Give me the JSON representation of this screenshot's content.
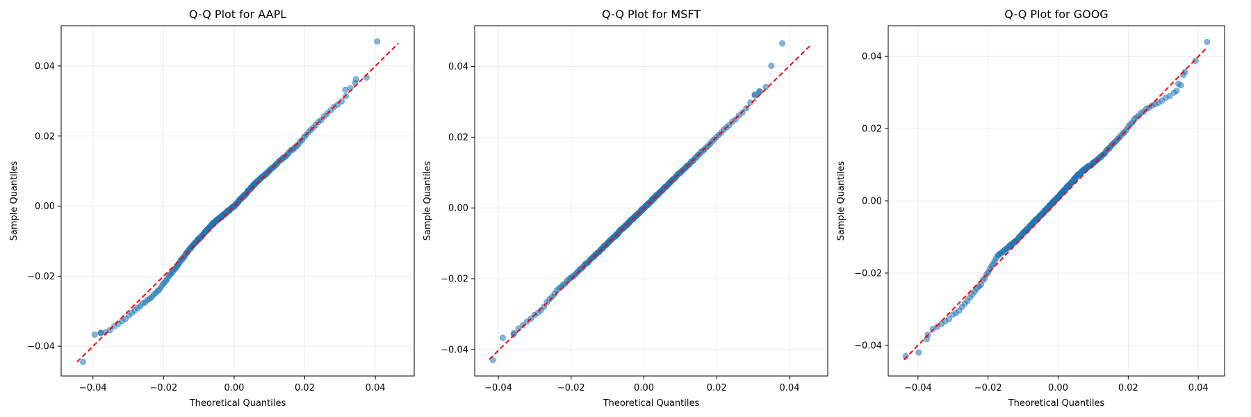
{
  "figure": {
    "background": "#ffffff"
  },
  "style": {
    "point_color": "#1f77b4",
    "line_color": "#ff0000",
    "grid_color": "#b0b0b0"
  },
  "chart_data": [
    {
      "type": "scatter",
      "title": "Q-Q Plot for AAPL",
      "xlabel": "Theoretical Quantiles",
      "ylabel": "Sample Quantiles",
      "xlim": [
        -0.049,
        0.051
      ],
      "ylim": [
        -0.0485,
        0.0515
      ],
      "xticks": [
        -0.04,
        -0.02,
        0.0,
        0.02,
        0.04
      ],
      "yticks": [
        -0.04,
        -0.02,
        0.0,
        0.02,
        0.04
      ],
      "xtick_labels": [
        "−0.04",
        "−0.02",
        "0.00",
        "0.02",
        "0.04"
      ],
      "ytick_labels": [
        "−0.04",
        "−0.02",
        "0.00",
        "0.02",
        "0.04"
      ],
      "grid": true,
      "reference_line": {
        "x": [
          -0.0445,
          0.0465
        ],
        "y": [
          -0.0445,
          0.0465
        ],
        "style": "dashed"
      },
      "knots": [
        [
          -0.0445,
          -0.0445
        ],
        [
          -0.0395,
          -0.0367
        ],
        [
          -0.0355,
          -0.0357
        ],
        [
          -0.03,
          -0.0315
        ],
        [
          -0.026,
          -0.028
        ],
        [
          -0.022,
          -0.0248
        ],
        [
          -0.018,
          -0.0195
        ],
        [
          -0.012,
          -0.0115
        ],
        [
          -0.006,
          -0.005
        ],
        [
          0.0,
          0.0
        ],
        [
          0.006,
          0.0065
        ],
        [
          0.012,
          0.012
        ],
        [
          0.018,
          0.0175
        ],
        [
          0.022,
          0.022
        ],
        [
          0.026,
          0.026
        ],
        [
          0.029,
          0.029
        ],
        [
          0.031,
          0.03
        ],
        [
          0.033,
          0.034
        ],
        [
          0.036,
          0.0365
        ],
        [
          0.041,
          0.047
        ]
      ],
      "tail_points": [
        [
          -0.0428,
          -0.0445
        ],
        [
          -0.0395,
          -0.0367
        ],
        [
          -0.0378,
          -0.0362
        ],
        [
          0.0315,
          0.0332
        ],
        [
          0.0345,
          0.0362
        ],
        [
          0.0375,
          0.0367
        ],
        [
          0.0405,
          0.047
        ]
      ]
    },
    {
      "type": "scatter",
      "title": "Q-Q Plot for MSFT",
      "xlabel": "Theoretical Quantiles",
      "ylabel": "Sample Quantiles",
      "xlim": [
        -0.0465,
        0.0505
      ],
      "ylim": [
        -0.0475,
        0.0515
      ],
      "xticks": [
        -0.04,
        -0.02,
        0.0,
        0.02,
        0.04
      ],
      "yticks": [
        -0.04,
        -0.02,
        0.0,
        0.02,
        0.04
      ],
      "xtick_labels": [
        "−0.04",
        "−0.02",
        "0.00",
        "0.02",
        "0.04"
      ],
      "ytick_labels": [
        "−0.04",
        "−0.02",
        "0.00",
        "0.02",
        "0.04"
      ],
      "grid": true,
      "reference_line": {
        "x": [
          -0.0425,
          0.046
        ],
        "y": [
          -0.0428,
          0.0462
        ],
        "style": "dashed"
      },
      "knots": [
        [
          -0.042,
          -0.043
        ],
        [
          -0.0395,
          -0.0368
        ],
        [
          -0.036,
          -0.0355
        ],
        [
          -0.032,
          -0.0322
        ],
        [
          -0.028,
          -0.0285
        ],
        [
          -0.024,
          -0.0235
        ],
        [
          -0.018,
          -0.0178
        ],
        [
          -0.012,
          -0.012
        ],
        [
          -0.006,
          -0.006
        ],
        [
          0.0,
          0.0
        ],
        [
          0.006,
          0.006
        ],
        [
          0.012,
          0.012
        ],
        [
          0.018,
          0.018
        ],
        [
          0.024,
          0.024
        ],
        [
          0.028,
          0.028
        ],
        [
          0.0305,
          0.032
        ],
        [
          0.033,
          0.034
        ],
        [
          0.035,
          0.04
        ],
        [
          0.038,
          0.0465
        ]
      ],
      "tail_points": [
        [
          -0.0415,
          -0.043
        ],
        [
          -0.0388,
          -0.0367
        ],
        [
          -0.0358,
          -0.0358
        ],
        [
          0.0305,
          0.0318
        ],
        [
          0.0318,
          0.0328
        ],
        [
          0.0335,
          0.0342
        ],
        [
          0.035,
          0.0402
        ],
        [
          0.038,
          0.0465
        ]
      ]
    },
    {
      "type": "scatter",
      "title": "Q-Q Plot for GOOG",
      "xlabel": "Theoretical Quantiles",
      "ylabel": "Sample Quantiles",
      "xlim": [
        -0.0485,
        0.0475
      ],
      "ylim": [
        -0.0485,
        0.0485
      ],
      "xticks": [
        -0.04,
        -0.02,
        0.0,
        0.02,
        0.04
      ],
      "yticks": [
        -0.04,
        -0.02,
        0.0,
        0.02,
        0.04
      ],
      "xtick_labels": [
        "−0.04",
        "−0.02",
        "0.00",
        "0.02",
        "0.04"
      ],
      "ytick_labels": [
        "−0.04",
        "−0.02",
        "0.00",
        "0.02",
        "0.04"
      ],
      "grid": true,
      "reference_line": {
        "x": [
          -0.044,
          0.0425
        ],
        "y": [
          -0.044,
          0.0425
        ],
        "style": "dashed"
      },
      "knots": [
        [
          -0.044,
          -0.043
        ],
        [
          -0.04,
          -0.042
        ],
        [
          -0.0365,
          -0.036
        ],
        [
          -0.033,
          -0.034
        ],
        [
          -0.028,
          -0.03
        ],
        [
          -0.022,
          -0.023
        ],
        [
          -0.0175,
          -0.0155
        ],
        [
          -0.012,
          -0.011
        ],
        [
          -0.006,
          -0.005
        ],
        [
          0.0,
          0.001
        ],
        [
          0.006,
          0.0075
        ],
        [
          0.012,
          0.012
        ],
        [
          0.018,
          0.018
        ],
        [
          0.022,
          0.023
        ],
        [
          0.026,
          0.026
        ],
        [
          0.03,
          0.028
        ],
        [
          0.033,
          0.03
        ],
        [
          0.036,
          0.0355
        ],
        [
          0.039,
          0.039
        ],
        [
          0.0425,
          0.044
        ]
      ],
      "tail_points": [
        [
          -0.0435,
          -0.043
        ],
        [
          -0.0398,
          -0.042
        ],
        [
          -0.0375,
          -0.0383
        ],
        [
          0.0338,
          0.0305
        ],
        [
          0.035,
          0.032
        ],
        [
          0.0362,
          0.0357
        ],
        [
          0.0392,
          0.0388
        ],
        [
          0.0425,
          0.044
        ]
      ]
    }
  ]
}
